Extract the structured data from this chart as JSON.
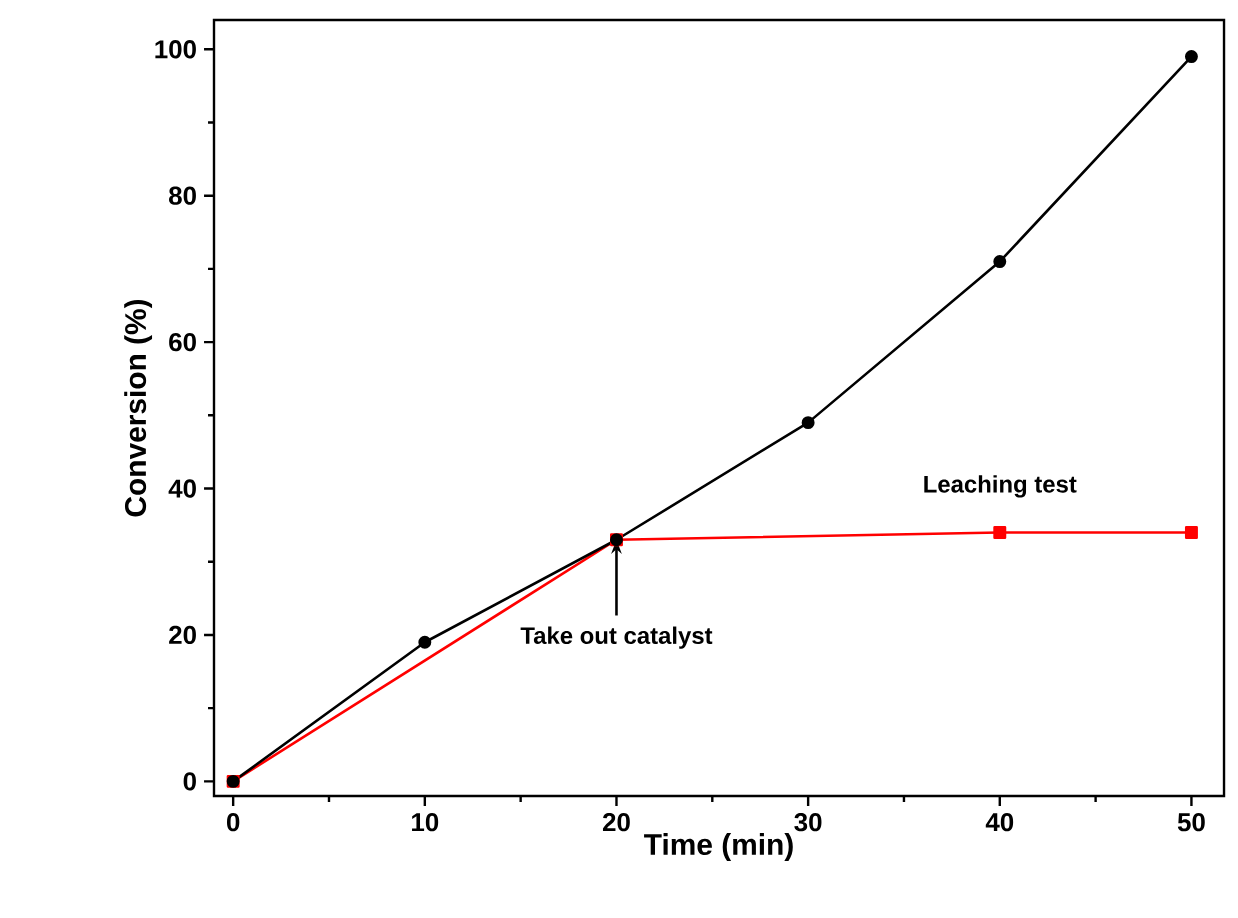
{
  "chart_data": {
    "type": "line",
    "xlabel": "Time (min)",
    "ylabel": "Conversion (%)",
    "xlim": [
      -1,
      51.7
    ],
    "ylim": [
      -2,
      104
    ],
    "xticks": [
      0,
      10,
      20,
      30,
      40,
      50
    ],
    "yticks": [
      0,
      20,
      40,
      60,
      80,
      100
    ],
    "grid": false,
    "series": [
      {
        "color": "#000000",
        "marker": "circle",
        "x": [
          0,
          10,
          20,
          30,
          40,
          50
        ],
        "values": [
          0,
          19,
          33,
          49,
          71,
          99
        ]
      },
      {
        "color": "#ff0000",
        "marker": "square",
        "x": [
          0,
          20,
          40,
          50
        ],
        "values": [
          0,
          33,
          34,
          34
        ]
      }
    ],
    "annotations": [
      {
        "text": "Take out catalyst",
        "x": 20,
        "y": 33
      },
      "Leaching test"
    ]
  }
}
